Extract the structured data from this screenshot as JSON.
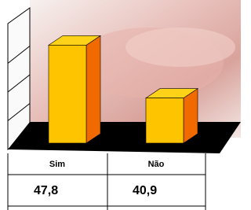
{
  "chart_data": {
    "type": "bar3d",
    "categories": [
      "Sim",
      "Não"
    ],
    "values": [
      47.8,
      40.9
    ],
    "value_labels": [
      "47,8",
      "40,9"
    ],
    "ylim": [
      35,
      50
    ],
    "grid": true,
    "colors": {
      "front": "#ffc400",
      "side": "#f06a00",
      "top": "#ffd21a"
    }
  }
}
